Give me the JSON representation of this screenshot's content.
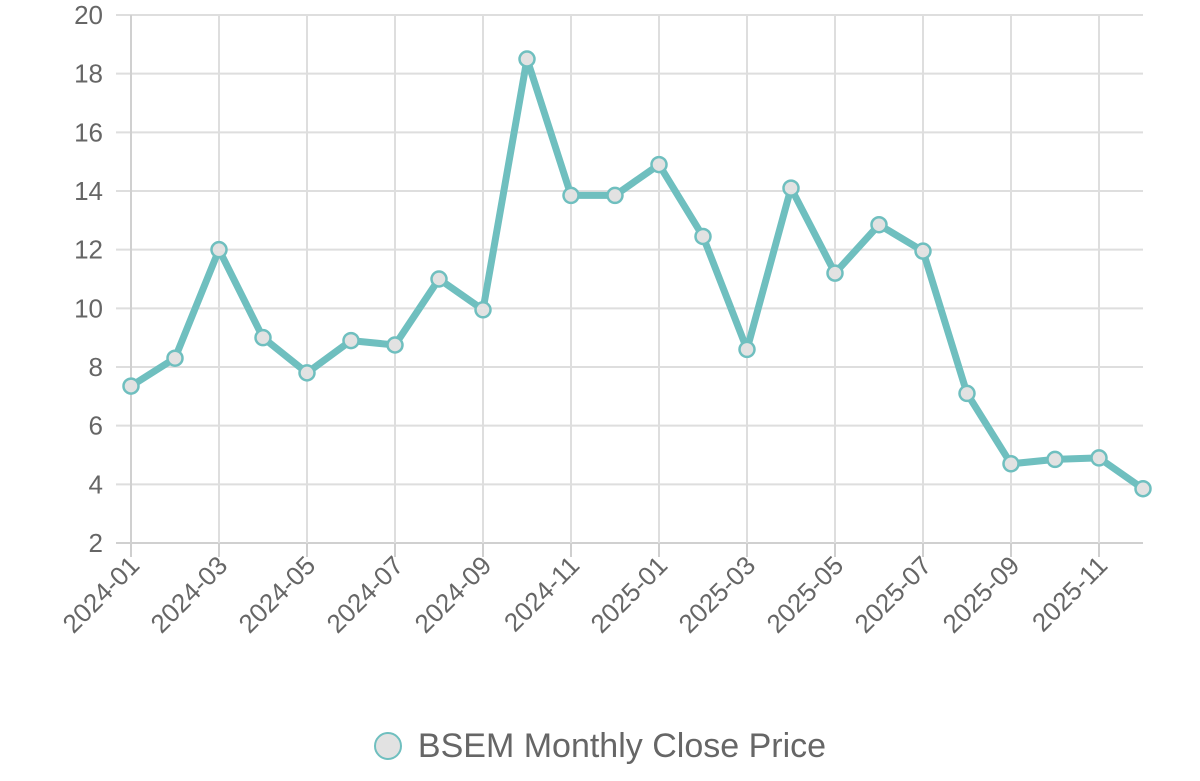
{
  "chart_data": {
    "type": "line",
    "title": "",
    "xlabel": "",
    "ylabel": "",
    "ylim": [
      2,
      20
    ],
    "y_ticks": [
      2,
      4,
      6,
      8,
      10,
      12,
      14,
      16,
      18,
      20
    ],
    "y_tick_labels": [
      "2",
      "4",
      "6",
      "8",
      "10",
      "12",
      "14",
      "16",
      "18",
      "20"
    ],
    "x": [
      "2024-01",
      "2024-02",
      "2024-03",
      "2024-04",
      "2024-05",
      "2024-06",
      "2024-07",
      "2024-08",
      "2024-09",
      "2024-10",
      "2024-11",
      "2024-12",
      "2025-01",
      "2025-02",
      "2025-03",
      "2025-04",
      "2025-05",
      "2025-06",
      "2025-07",
      "2025-08",
      "2025-09",
      "2025-10",
      "2025-11",
      "2025-12"
    ],
    "x_tick_labels": [
      "2024-01",
      "2024-03",
      "2024-05",
      "2024-07",
      "2024-09",
      "2024-11",
      "2025-01",
      "2025-03",
      "2025-05",
      "2025-07",
      "2025-09",
      "2025-11"
    ],
    "grid": true,
    "legend_position": "bottom",
    "series": [
      {
        "name": "BSEM Monthly Close Price",
        "color": "#6fbfbf",
        "point_fill": "#e2e2e2",
        "values": [
          7.35,
          8.3,
          12.0,
          9.0,
          7.8,
          8.9,
          8.75,
          11.0,
          9.95,
          18.5,
          13.85,
          13.85,
          14.9,
          12.45,
          8.6,
          14.1,
          11.2,
          12.85,
          11.95,
          7.1,
          4.7,
          4.85,
          4.9,
          3.85
        ]
      }
    ]
  },
  "legend": {
    "label": "BSEM Monthly Close Price",
    "icon": "circle-marker-icon"
  }
}
